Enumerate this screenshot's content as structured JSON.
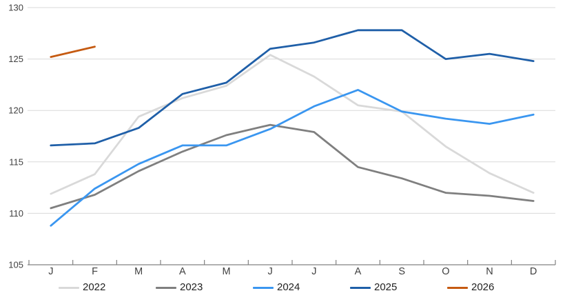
{
  "chart_data": {
    "type": "line",
    "title": "",
    "xlabel": "",
    "ylabel": "",
    "x_categories": [
      "J",
      "F",
      "M",
      "A",
      "M",
      "J",
      "J",
      "A",
      "S",
      "O",
      "N",
      "D"
    ],
    "y_ticks": [
      105,
      110,
      115,
      120,
      125,
      130
    ],
    "ylim": [
      105,
      130
    ],
    "grid": "horizontal",
    "legend_position": "bottom",
    "series": [
      {
        "name": "2022",
        "color": "#d9d9d9",
        "values": [
          111.9,
          113.8,
          119.4,
          121.2,
          122.4,
          125.4,
          123.3,
          120.5,
          119.9,
          116.5,
          113.9,
          112.0
        ]
      },
      {
        "name": "2023",
        "color": "#7f7f7f",
        "values": [
          110.5,
          111.8,
          114.1,
          116.0,
          117.6,
          118.6,
          117.9,
          114.5,
          113.4,
          112.0,
          111.7,
          111.2
        ]
      },
      {
        "name": "2024",
        "color": "#3a96f0",
        "values": [
          108.8,
          112.4,
          114.8,
          116.6,
          116.6,
          118.2,
          120.4,
          122.0,
          119.9,
          119.2,
          118.7,
          119.6
        ]
      },
      {
        "name": "2025",
        "color": "#1f5fa8",
        "values": [
          116.6,
          116.8,
          118.3,
          121.6,
          122.7,
          126.0,
          126.6,
          127.8,
          127.8,
          125.0,
          125.5,
          124.8
        ]
      },
      {
        "name": "2026",
        "color": "#c55a11",
        "values": [
          125.2,
          126.2,
          null,
          null,
          null,
          null,
          null,
          null,
          null,
          null,
          null,
          null
        ]
      }
    ],
    "axis_color": "#808080",
    "gridline_color": "#d9d9d9"
  }
}
